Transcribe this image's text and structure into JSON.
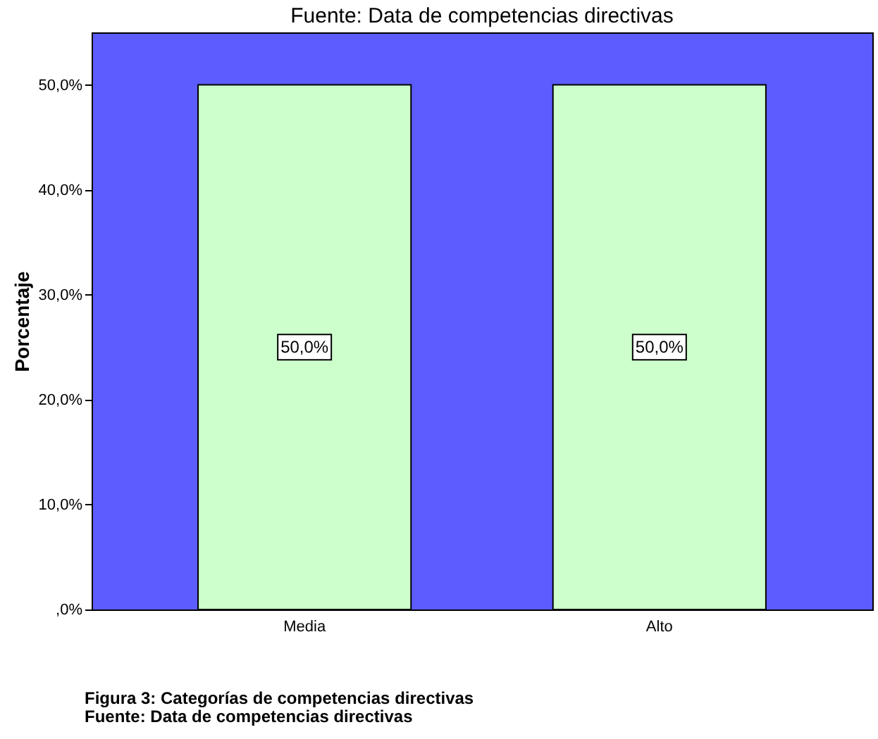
{
  "chart_data": {
    "type": "bar",
    "title": "Fuente: Data de competencias directivas",
    "ylabel": "Porcentaje",
    "categories": [
      "Media",
      "Alto"
    ],
    "values": [
      50,
      50
    ],
    "color": "#ccffcc",
    "value_labels": [
      "50,0%",
      "50,0%"
    ],
    "ylim": [
      0,
      55
    ],
    "yticks": [
      {
        "value": 0,
        "label": ",0%"
      },
      {
        "value": 10,
        "label": "10,0%"
      },
      {
        "value": 20,
        "label": "20,0%"
      },
      {
        "value": 30,
        "label": "30,0%"
      },
      {
        "value": 40,
        "label": "40,0%"
      },
      {
        "value": 50,
        "label": "50,0%"
      }
    ],
    "grid": false,
    "annotations": [
      "Figura 3: Categorías de competencias directivas",
      "Fuente: Data de competencias directivas"
    ]
  }
}
